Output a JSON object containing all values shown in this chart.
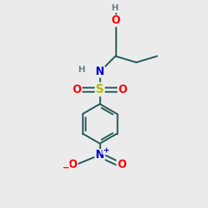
{
  "background_color": "#ebebeb",
  "bond_color": "#2f5f5f",
  "ring_color": "#2f5f5f",
  "atom_colors": {
    "O": "#ff0000",
    "N": "#0000cd",
    "S": "#b8b800",
    "H": "#708090",
    "C": "#2f5f5f"
  },
  "figsize": [
    3.0,
    3.0
  ],
  "dpi": 100
}
